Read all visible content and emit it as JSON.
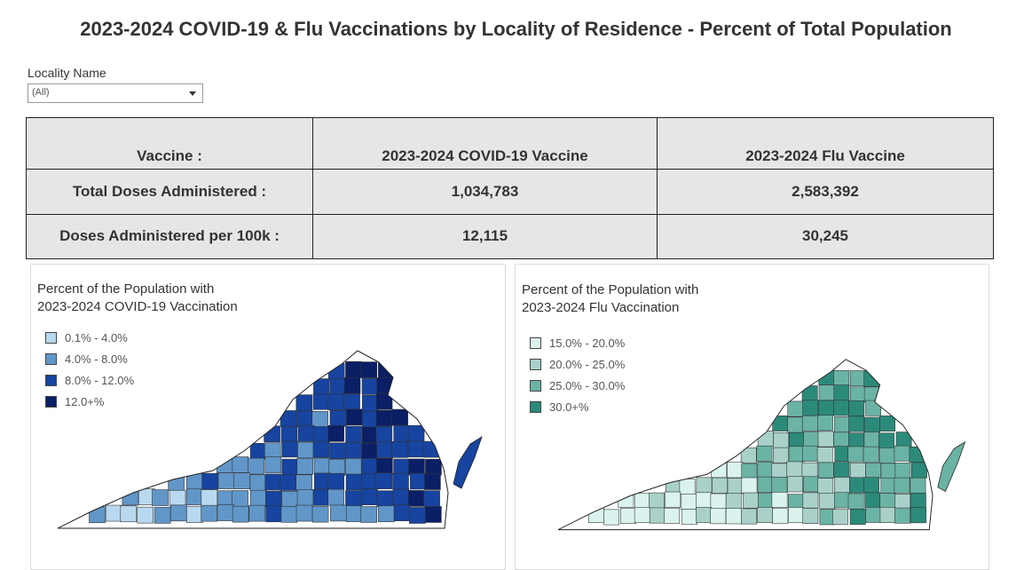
{
  "title": "2023-2024 COVID-19 & Flu Vaccinations by Locality of Residence - Percent of Total Population",
  "filter": {
    "label": "Locality Name",
    "value": "(All)"
  },
  "summary": {
    "header": [
      "Vaccine :",
      "2023-2024 COVID-19 Vaccine",
      "2023-2024 Flu Vaccine"
    ],
    "rows": [
      {
        "label": "Total Doses Administered :",
        "covid": "1,034,783",
        "flu": "2,583,392"
      },
      {
        "label": "Doses Administered per 100k :",
        "covid": "12,115",
        "flu": "30,245"
      }
    ],
    "colors": {
      "covid_value": "#1f3b6b",
      "flu_value": "#1c7a6b",
      "table_bg": "#e6e6e6"
    }
  },
  "maps": {
    "covid": {
      "title_line1": "Percent of the Population with",
      "title_line2": "2023-2024 COVID-19 Vaccination",
      "legend": [
        {
          "label": "0.1% - 4.0%",
          "color": "#b9d9f0"
        },
        {
          "label": "4.0% - 8.0%",
          "color": "#6196c8"
        },
        {
          "label": "8.0% - 12.0%",
          "color": "#1644a0"
        },
        {
          "label": "12.0+%",
          "color": "#0a1f66"
        }
      ]
    },
    "flu": {
      "title_line1": "Percent of the Population with",
      "title_line2": "2023-2024 Flu Vaccination",
      "legend": [
        {
          "label": "15.0% - 20.0%",
          "color": "#daf3ef"
        },
        {
          "label": "20.0% - 25.0%",
          "color": "#a9d1c9"
        },
        {
          "label": "25.0% - 30.0%",
          "color": "#6bb3a5"
        },
        {
          "label": "30.0+%",
          "color": "#2c8a7a"
        }
      ]
    }
  }
}
